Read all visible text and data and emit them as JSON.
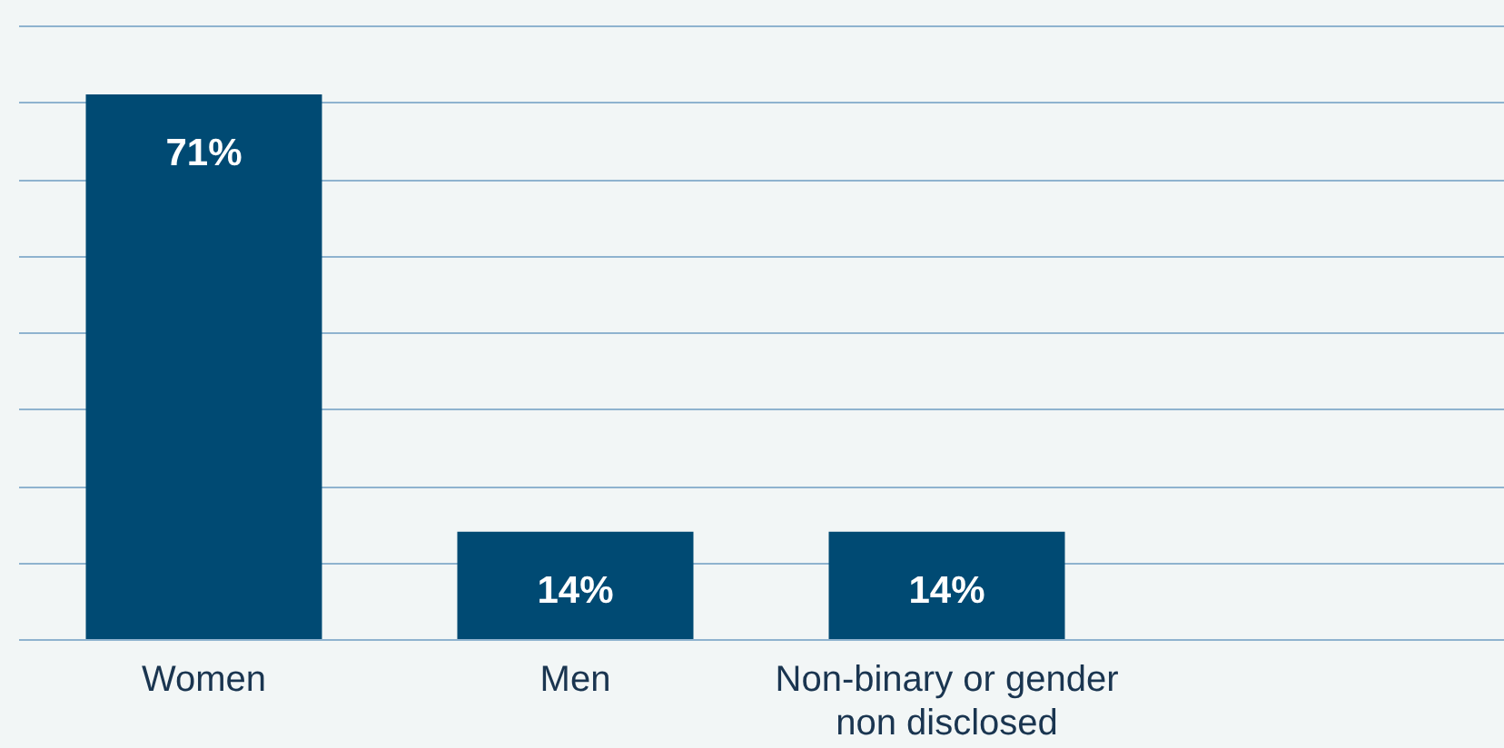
{
  "chart_data": {
    "type": "bar",
    "categories": [
      "Women",
      "Men",
      "Non-binary or gender\nnon disclosed"
    ],
    "values": [
      71,
      14,
      14
    ],
    "color": "#004a73",
    "ylim": [
      0,
      80
    ],
    "yticks": [
      {
        "value": 0,
        "label": null
      },
      {
        "value": 10,
        "label": null
      },
      {
        "value": 20,
        "label": null
      },
      {
        "value": 30,
        "label": null
      },
      {
        "value": 40,
        "label": null
      },
      {
        "value": 50,
        "label": null
      },
      {
        "value": 60,
        "label": null
      },
      {
        "value": 70,
        "label": null
      },
      {
        "value": 80,
        "label": null
      }
    ],
    "value_labels": [
      "71%",
      "14%",
      "14%"
    ],
    "grid": "y",
    "tick_labels": "x"
  }
}
